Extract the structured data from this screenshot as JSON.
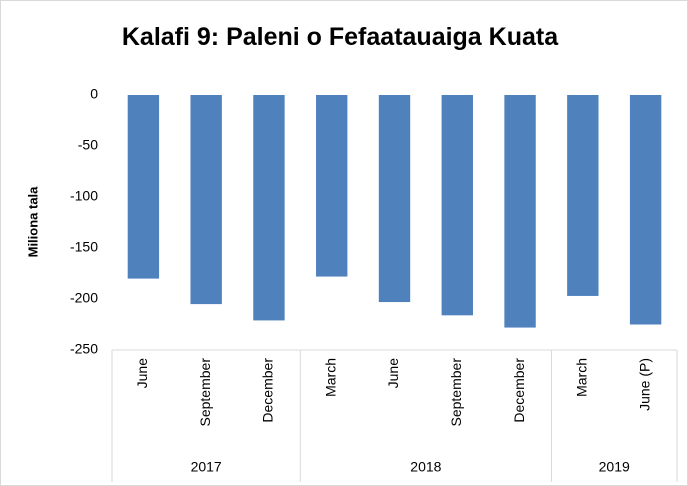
{
  "chart_data": {
    "type": "bar",
    "title": "Kalafi 9: Paleni o Fefaatauaiga Kuata",
    "y_label": "Miliona tala",
    "categories": [
      "June",
      "September",
      "December",
      "March",
      "June",
      "September",
      "December",
      "March",
      "June (P)"
    ],
    "groups": [
      {
        "name": "2017",
        "span": 3
      },
      {
        "name": "2018",
        "span": 4
      },
      {
        "name": "2019",
        "span": 2
      }
    ],
    "values": [
      -180,
      -205,
      -221,
      -178,
      -203,
      -216,
      -228,
      -197,
      -225
    ],
    "color": "#4f81bd",
    "ylim": [
      -250,
      0
    ],
    "yticks": [
      0,
      -50,
      -100,
      -150,
      -200,
      -250
    ],
    "grid": false
  }
}
